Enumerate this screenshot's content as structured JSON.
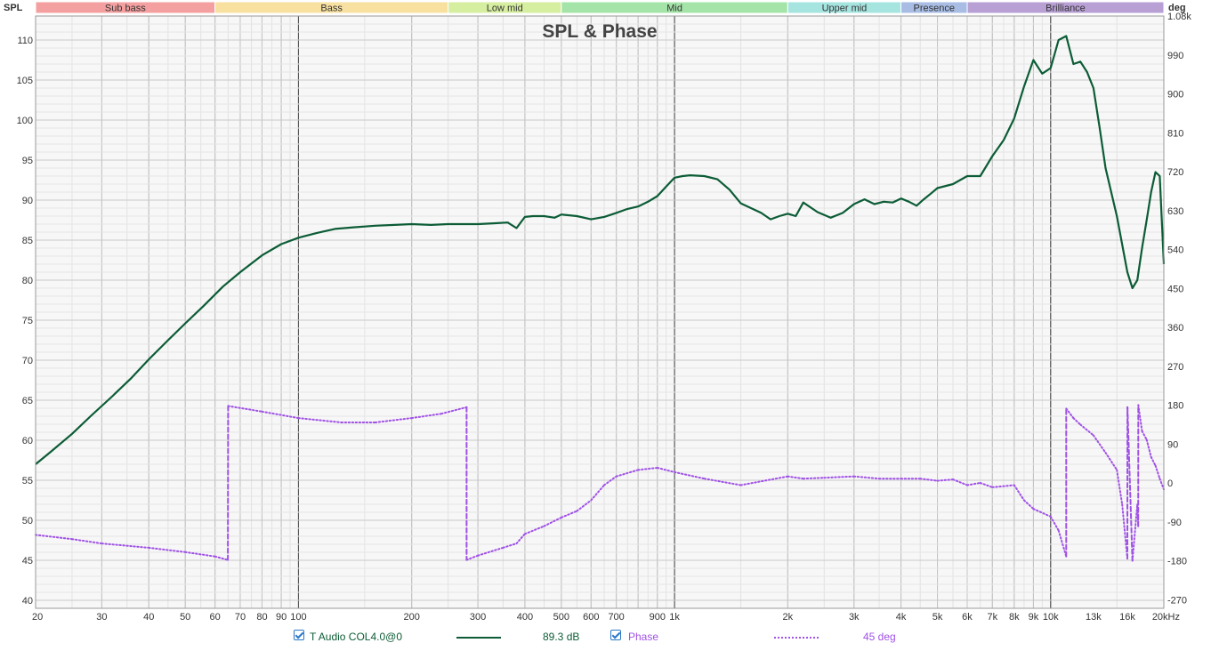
{
  "chart_data": {
    "type": "line",
    "title": "SPL & Phase",
    "y_left_label": "SPL",
    "y_right_label": "deg",
    "x_scale": "log",
    "x_range": [
      20,
      20000
    ],
    "y_left_range": [
      39,
      113
    ],
    "y_right_range": [
      -290,
      1080
    ],
    "grid": true,
    "x_ticks": [
      {
        "v": 20,
        "label": "20"
      },
      {
        "v": 30,
        "label": "30"
      },
      {
        "v": 40,
        "label": "40"
      },
      {
        "v": 50,
        "label": "50"
      },
      {
        "v": 60,
        "label": "60"
      },
      {
        "v": 70,
        "label": "70"
      },
      {
        "v": 80,
        "label": "80"
      },
      {
        "v": 90,
        "label": "90"
      },
      {
        "v": 100,
        "label": "100"
      },
      {
        "v": 200,
        "label": "200"
      },
      {
        "v": 300,
        "label": "300"
      },
      {
        "v": 400,
        "label": "400"
      },
      {
        "v": 500,
        "label": "500"
      },
      {
        "v": 600,
        "label": "600"
      },
      {
        "v": 700,
        "label": "700"
      },
      {
        "v": 900,
        "label": "900"
      },
      {
        "v": 1000,
        "label": "1k"
      },
      {
        "v": 2000,
        "label": "2k"
      },
      {
        "v": 3000,
        "label": "3k"
      },
      {
        "v": 4000,
        "label": "4k"
      },
      {
        "v": 5000,
        "label": "5k"
      },
      {
        "v": 6000,
        "label": "6k"
      },
      {
        "v": 7000,
        "label": "7k"
      },
      {
        "v": 8000,
        "label": "8k"
      },
      {
        "v": 9000,
        "label": "9k"
      },
      {
        "v": 10000,
        "label": "10k"
      },
      {
        "v": 13000,
        "label": "13k"
      },
      {
        "v": 16000,
        "label": "16k"
      },
      {
        "v": 20000,
        "label": "20kHz"
      }
    ],
    "y_left_ticks": [
      40,
      45,
      50,
      55,
      60,
      65,
      70,
      75,
      80,
      85,
      90,
      95,
      100,
      105,
      110
    ],
    "y_right_ticks": [
      {
        "v": -270,
        "label": "-270"
      },
      {
        "v": -180,
        "label": "-180"
      },
      {
        "v": -90,
        "label": "-90"
      },
      {
        "v": 0,
        "label": "0"
      },
      {
        "v": 90,
        "label": "90"
      },
      {
        "v": 180,
        "label": "180"
      },
      {
        "v": 270,
        "label": "270"
      },
      {
        "v": 360,
        "label": "360"
      },
      {
        "v": 450,
        "label": "450"
      },
      {
        "v": 540,
        "label": "540"
      },
      {
        "v": 630,
        "label": "630"
      },
      {
        "v": 720,
        "label": "720"
      },
      {
        "v": 810,
        "label": "810"
      },
      {
        "v": 900,
        "label": "900"
      },
      {
        "v": 990,
        "label": "990"
      },
      {
        "v": 1080,
        "label": "1.08k"
      }
    ],
    "bands": [
      {
        "name": "Sub bass",
        "from": 20,
        "to": 60,
        "color": "#f4a0a0"
      },
      {
        "name": "Bass",
        "from": 60,
        "to": 250,
        "color": "#f7e0a0"
      },
      {
        "name": "Low mid",
        "from": 250,
        "to": 500,
        "color": "#d6eea0"
      },
      {
        "name": "Mid",
        "from": 500,
        "to": 2000,
        "color": "#a4e4a8"
      },
      {
        "name": "Upper mid",
        "from": 2000,
        "to": 4000,
        "color": "#a6e4e0"
      },
      {
        "name": "Presence",
        "from": 4000,
        "to": 6000,
        "color": "#a8bce4"
      },
      {
        "name": "Brilliance",
        "from": 6000,
        "to": 20000,
        "color": "#b8a0d4"
      }
    ],
    "series": [
      {
        "name": "T Audio COL4.0@0",
        "axis": "left",
        "color": "#0c5c36",
        "x": [
          20,
          22,
          25,
          28,
          32,
          36,
          40,
          45,
          50,
          56,
          63,
          70,
          80,
          90,
          100,
          112,
          125,
          140,
          160,
          180,
          200,
          225,
          250,
          280,
          300,
          330,
          360,
          380,
          400,
          420,
          450,
          480,
          500,
          550,
          600,
          650,
          700,
          750,
          800,
          850,
          900,
          950,
          1000,
          1050,
          1100,
          1200,
          1300,
          1400,
          1500,
          1700,
          1800,
          1900,
          2000,
          2100,
          2200,
          2400,
          2600,
          2800,
          3000,
          3200,
          3400,
          3600,
          3800,
          4000,
          4200,
          4400,
          4600,
          4800,
          5000,
          5500,
          6000,
          6500,
          7000,
          7500,
          8000,
          8500,
          9000,
          9500,
          10000,
          10500,
          11000,
          11500,
          12000,
          12500,
          13000,
          13500,
          14000,
          15000,
          16000,
          16500,
          17000,
          17500,
          18000,
          18500,
          19000,
          19500,
          20000
        ],
        "y": [
          57,
          58.6,
          60.8,
          63,
          65.5,
          67.8,
          70.1,
          72.5,
          74.6,
          76.8,
          79.2,
          81,
          83.1,
          84.5,
          85.3,
          85.9,
          86.4,
          86.6,
          86.8,
          86.9,
          87,
          86.9,
          87,
          87,
          87,
          87.1,
          87.2,
          86.5,
          87.9,
          88,
          88,
          87.8,
          88.2,
          88,
          87.6,
          87.9,
          88.4,
          88.9,
          89.2,
          89.8,
          90.5,
          91.7,
          92.8,
          93,
          93.1,
          93,
          92.6,
          91.3,
          89.6,
          88.4,
          87.6,
          88,
          88.3,
          88,
          89.7,
          88.5,
          87.8,
          88.4,
          89.5,
          90.1,
          89.5,
          89.8,
          89.7,
          90.2,
          89.8,
          89.3,
          90.1,
          90.8,
          91.5,
          92,
          93,
          93,
          95.5,
          97.5,
          100.2,
          104.2,
          107.5,
          105.8,
          106.5,
          110,
          110.5,
          107,
          107.3,
          106,
          104,
          99,
          94,
          88,
          81,
          79,
          80,
          84,
          87.5,
          91,
          93.5,
          93,
          82
        ]
      },
      {
        "name": "Phase",
        "axis": "right",
        "color": "#a052e6",
        "x": [
          20,
          25,
          30,
          40,
          50,
          60,
          64.9,
          65,
          80,
          100,
          130,
          160,
          200,
          240,
          279.9,
          280,
          300,
          350,
          380,
          400,
          450,
          500,
          550,
          600,
          650,
          700,
          800,
          900,
          1000,
          1200,
          1500,
          2000,
          2200,
          2500,
          3000,
          3500,
          4000,
          4500,
          5000,
          5500,
          6000,
          6500,
          7000,
          8000,
          8500,
          9000,
          10000,
          10500,
          11000,
          11001,
          11500,
          12000,
          13000,
          14000,
          15000,
          15500,
          16000,
          16001,
          16500,
          17000,
          17100,
          17101,
          17500,
          18000,
          18500,
          19000,
          19500,
          20000
        ],
        "y": [
          -120,
          -130,
          -140,
          -150,
          -160,
          -170,
          -178,
          178,
          165,
          150,
          140,
          140,
          150,
          160,
          175,
          -178,
          -168,
          -150,
          -140,
          -118,
          -100,
          -80,
          -65,
          -40,
          -5,
          15,
          30,
          35,
          25,
          10,
          -5,
          15,
          10,
          12,
          15,
          10,
          10,
          10,
          5,
          8,
          -5,
          0,
          -10,
          -5,
          -40,
          -60,
          -78,
          -110,
          -170,
          172,
          150,
          135,
          110,
          70,
          30,
          -50,
          -175,
          175,
          -180,
          -50,
          -100,
          180,
          120,
          100,
          60,
          40,
          10,
          -15
        ]
      }
    ]
  },
  "legend": [
    {
      "label": "T Audio COL4.0@0",
      "value": "89.3 dB"
    },
    {
      "label": "Phase",
      "value": "45 deg"
    }
  ]
}
